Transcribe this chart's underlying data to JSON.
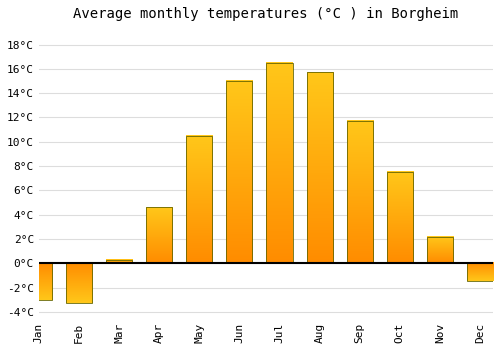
{
  "months": [
    "Jan",
    "Feb",
    "Mar",
    "Apr",
    "May",
    "Jun",
    "Jul",
    "Aug",
    "Sep",
    "Oct",
    "Nov",
    "Dec"
  ],
  "values": [
    -3.0,
    -3.3,
    0.3,
    4.6,
    10.5,
    15.0,
    16.5,
    15.7,
    11.7,
    7.5,
    2.2,
    -1.5
  ],
  "bar_color_top": "#FFB300",
  "bar_color_bottom": "#FF8C00",
  "bar_edge_color": "#666600",
  "title": "Average monthly temperatures (°C ) in Borgheim",
  "ylim": [
    -4.5,
    19.5
  ],
  "yticks": [
    -4,
    -2,
    0,
    2,
    4,
    6,
    8,
    10,
    12,
    14,
    16,
    18
  ],
  "background_color": "#ffffff",
  "grid_color": "#dddddd",
  "zero_line_color": "#000000",
  "title_fontsize": 10,
  "tick_fontsize": 8,
  "font_family": "monospace"
}
